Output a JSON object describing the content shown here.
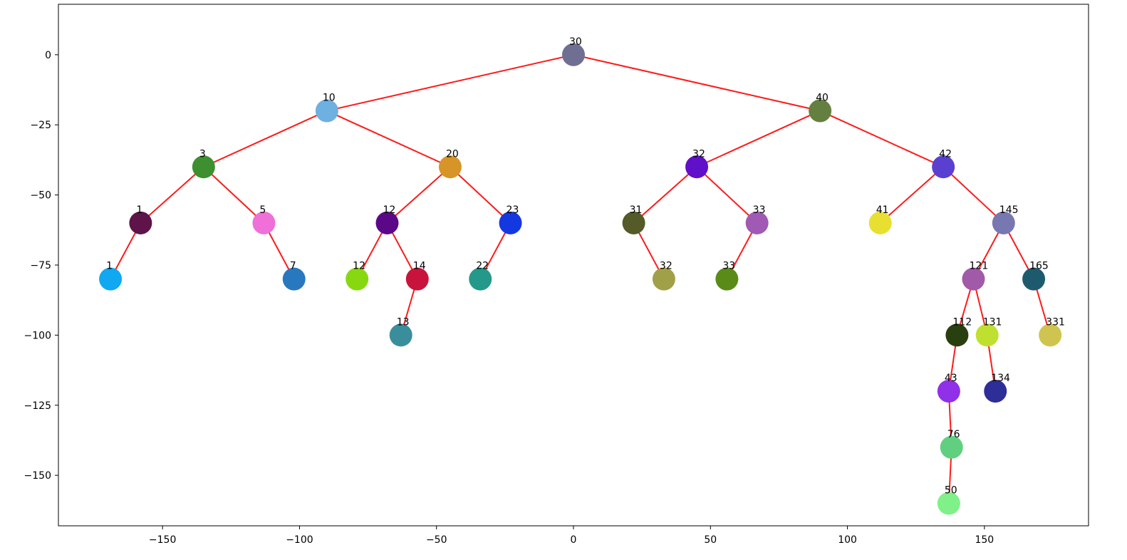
{
  "chart_data": {
    "type": "scatter",
    "title": "",
    "xlabel": "",
    "ylabel": "",
    "xlim": [
      -188,
      188
    ],
    "ylim": [
      -168,
      18
    ],
    "grid": false,
    "legend": "none",
    "edge_color": "#ff1a1a",
    "x_ticks": [
      -150,
      -100,
      -50,
      0,
      50,
      100,
      150
    ],
    "x_tick_labels": [
      "−150",
      "−100",
      "−50",
      "0",
      "50",
      "100",
      "150"
    ],
    "y_ticks": [
      0,
      -25,
      -50,
      -75,
      -100,
      -125,
      -150
    ],
    "y_tick_labels": [
      "0",
      "−25",
      "−50",
      "−75",
      "−100",
      "−125",
      "−150"
    ],
    "nodes": [
      {
        "id": "n0",
        "label": "30",
        "x": 0,
        "y": 0,
        "color": "#6f6f93"
      },
      {
        "id": "n1",
        "label": "10",
        "x": -90,
        "y": -20,
        "color": "#6eb0e0"
      },
      {
        "id": "n2",
        "label": "40",
        "x": 90,
        "y": -20,
        "color": "#648040"
      },
      {
        "id": "n3",
        "label": "3",
        "x": -135,
        "y": -40,
        "color": "#3e8f30"
      },
      {
        "id": "n4",
        "label": "20",
        "x": -45,
        "y": -40,
        "color": "#d79528"
      },
      {
        "id": "n5",
        "label": "32",
        "x": 45,
        "y": -40,
        "color": "#6010c8"
      },
      {
        "id": "n6",
        "label": "42",
        "x": 135,
        "y": -40,
        "color": "#5a40d0"
      },
      {
        "id": "n7",
        "label": "1",
        "x": -158,
        "y": -60,
        "color": "#5e1448"
      },
      {
        "id": "n8",
        "label": "5",
        "x": -113,
        "y": -60,
        "color": "#ee70d8"
      },
      {
        "id": "n9",
        "label": "12",
        "x": -68,
        "y": -60,
        "color": "#5a0888"
      },
      {
        "id": "n10",
        "label": "23",
        "x": -23,
        "y": -60,
        "color": "#1438e0"
      },
      {
        "id": "n11",
        "label": "31",
        "x": 22,
        "y": -60,
        "color": "#545a28"
      },
      {
        "id": "n12",
        "label": "33",
        "x": 67,
        "y": -60,
        "color": "#a05ab4"
      },
      {
        "id": "n13",
        "label": "41",
        "x": 112,
        "y": -60,
        "color": "#e8e030"
      },
      {
        "id": "n14",
        "label": "145",
        "x": 157,
        "y": -60,
        "color": "#7878b0"
      },
      {
        "id": "n15",
        "label": "1",
        "x": -169,
        "y": -80,
        "color": "#10a8f0"
      },
      {
        "id": "n16",
        "label": "7",
        "x": -102,
        "y": -80,
        "color": "#2878c0"
      },
      {
        "id": "n17",
        "label": "12",
        "x": -79,
        "y": -80,
        "color": "#88d810"
      },
      {
        "id": "n18",
        "label": "14",
        "x": -57,
        "y": -80,
        "color": "#c8143c"
      },
      {
        "id": "n19",
        "label": "22",
        "x": -34,
        "y": -80,
        "color": "#24988a"
      },
      {
        "id": "n20",
        "label": "32",
        "x": 33,
        "y": -80,
        "color": "#a0a048"
      },
      {
        "id": "n21",
        "label": "33",
        "x": 56,
        "y": -80,
        "color": "#5a8a18"
      },
      {
        "id": "n22",
        "label": "121",
        "x": 146,
        "y": -80,
        "color": "#a05aa8"
      },
      {
        "id": "n23",
        "label": "165",
        "x": 168,
        "y": -80,
        "color": "#1e5a6e"
      },
      {
        "id": "n24",
        "label": "13",
        "x": -63,
        "y": -100,
        "color": "#3a8e9c"
      },
      {
        "id": "n25",
        "label": "112",
        "x": 140,
        "y": -100,
        "color": "#284010"
      },
      {
        "id": "n26",
        "label": "131",
        "x": 151,
        "y": -100,
        "color": "#c0e030"
      },
      {
        "id": "n27",
        "label": "331",
        "x": 174,
        "y": -100,
        "color": "#d0c450"
      },
      {
        "id": "n28",
        "label": "43",
        "x": 137,
        "y": -120,
        "color": "#9030e8"
      },
      {
        "id": "n29",
        "label": "134",
        "x": 154,
        "y": -120,
        "color": "#2e2e98"
      },
      {
        "id": "n30",
        "label": "76",
        "x": 138,
        "y": -140,
        "color": "#60d080"
      },
      {
        "id": "n31",
        "label": "50",
        "x": 137,
        "y": -160,
        "color": "#80f088"
      }
    ],
    "edges": [
      [
        "n0",
        "n1"
      ],
      [
        "n0",
        "n2"
      ],
      [
        "n1",
        "n3"
      ],
      [
        "n1",
        "n4"
      ],
      [
        "n2",
        "n5"
      ],
      [
        "n2",
        "n6"
      ],
      [
        "n3",
        "n7"
      ],
      [
        "n3",
        "n8"
      ],
      [
        "n4",
        "n9"
      ],
      [
        "n4",
        "n10"
      ],
      [
        "n5",
        "n11"
      ],
      [
        "n5",
        "n12"
      ],
      [
        "n6",
        "n13"
      ],
      [
        "n6",
        "n14"
      ],
      [
        "n7",
        "n15"
      ],
      [
        "n8",
        "n16"
      ],
      [
        "n9",
        "n17"
      ],
      [
        "n9",
        "n18"
      ],
      [
        "n10",
        "n19"
      ],
      [
        "n11",
        "n20"
      ],
      [
        "n12",
        "n21"
      ],
      [
        "n14",
        "n22"
      ],
      [
        "n14",
        "n23"
      ],
      [
        "n18",
        "n24"
      ],
      [
        "n22",
        "n25"
      ],
      [
        "n22",
        "n26"
      ],
      [
        "n23",
        "n27"
      ],
      [
        "n25",
        "n28"
      ],
      [
        "n26",
        "n29"
      ],
      [
        "n28",
        "n30"
      ],
      [
        "n30",
        "n31"
      ]
    ]
  }
}
